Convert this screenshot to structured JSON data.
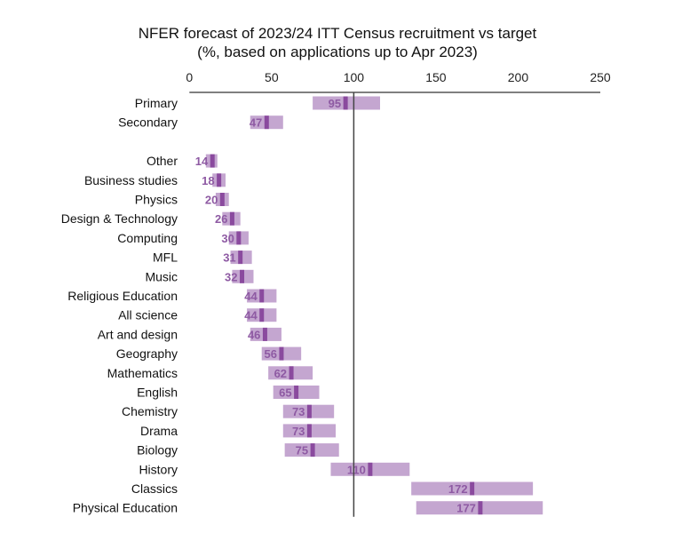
{
  "chart_data": {
    "type": "bar",
    "subtype": "range-with-point-estimate",
    "title": "NFER forecast of 2023/24 ITT Census recruitment vs target",
    "subtitle": "(%, based on applications up to Apr 2023)",
    "xlabel": "",
    "ylabel": "",
    "xlim": [
      0,
      250
    ],
    "xticks": [
      0,
      50,
      100,
      150,
      200,
      250
    ],
    "axis_position": "top",
    "reference_line": 100,
    "grid": false,
    "colors": {
      "range": "#c4a6d0",
      "estimate": "#8a4a9e",
      "label": "#8e5aa3",
      "reference": "#444444"
    },
    "groups": [
      {
        "categories": [
          "Primary",
          "Secondary"
        ],
        "values": [
          95,
          47
        ],
        "low": [
          75,
          37
        ],
        "high": [
          116,
          57
        ]
      },
      {
        "categories": [
          "Other",
          "Business studies",
          "Physics",
          "Design & Technology",
          "Computing",
          "MFL",
          "Music",
          "Religious Education",
          "All science",
          "Art and design",
          "Geography",
          "Mathematics",
          "English",
          "Chemistry",
          "Drama",
          "Biology",
          "History",
          "Classics",
          "Physical Education"
        ],
        "values": [
          14,
          18,
          20,
          26,
          30,
          31,
          32,
          44,
          44,
          46,
          56,
          62,
          65,
          73,
          73,
          75,
          110,
          172,
          177
        ],
        "low": [
          10,
          14,
          16,
          20,
          24,
          25,
          26,
          35,
          35,
          37,
          44,
          48,
          51,
          57,
          57,
          58,
          86,
          135,
          138
        ],
        "high": [
          17,
          22,
          24,
          31,
          36,
          38,
          39,
          53,
          53,
          56,
          68,
          75,
          79,
          88,
          89,
          91,
          134,
          209,
          215
        ]
      }
    ]
  }
}
